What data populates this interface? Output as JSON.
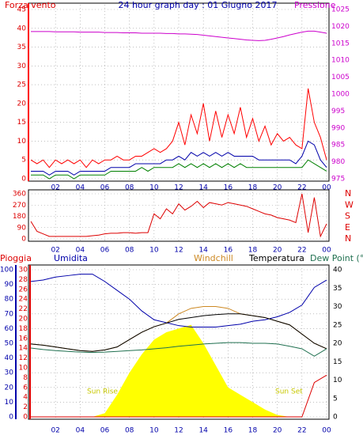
{
  "chart_data": [
    {
      "type": "line",
      "title": "24 hour graph day : 01 Giugno 2017",
      "ylabel": "Forza vento",
      "y2label": "Pressione",
      "x": [
        0,
        0.5,
        1,
        1.5,
        2,
        2.5,
        3,
        3.5,
        4,
        4.5,
        5,
        5.5,
        6,
        6.5,
        7,
        7.5,
        8,
        8.5,
        9,
        9.5,
        10,
        10.5,
        11,
        11.5,
        12,
        12.5,
        13,
        13.5,
        14,
        14.5,
        15,
        15.5,
        16,
        16.5,
        17,
        17.5,
        18,
        18.5,
        19,
        19.5,
        20,
        20.5,
        21,
        21.5,
        22,
        22.5,
        23,
        23.5,
        24
      ],
      "series": [
        {
          "color": "#ff0000",
          "values": [
            5,
            4,
            5,
            3,
            5,
            4,
            5,
            4,
            5,
            3,
            5,
            4,
            5,
            5,
            6,
            5,
            5,
            6,
            6,
            7,
            8,
            7,
            8,
            10,
            15,
            9,
            17,
            12,
            20,
            10,
            18,
            11,
            17,
            12,
            19,
            11,
            16,
            10,
            14,
            9,
            12,
            10,
            11,
            9,
            8,
            24,
            15,
            11,
            5
          ]
        },
        {
          "color": "#0000aa",
          "values": [
            2,
            2,
            2,
            1,
            2,
            2,
            2,
            1,
            2,
            2,
            2,
            2,
            2,
            3,
            3,
            3,
            3,
            4,
            4,
            4,
            4,
            4,
            5,
            5,
            6,
            5,
            7,
            6,
            7,
            6,
            7,
            6,
            7,
            6,
            6,
            6,
            6,
            5,
            5,
            5,
            5,
            5,
            5,
            4,
            6,
            10,
            9,
            5,
            3
          ]
        },
        {
          "color": "#008000",
          "values": [
            1,
            1,
            1,
            0,
            1,
            1,
            1,
            0,
            1,
            1,
            1,
            1,
            1,
            2,
            2,
            2,
            2,
            2,
            3,
            2,
            3,
            3,
            3,
            3,
            4,
            3,
            4,
            3,
            4,
            3,
            4,
            3,
            4,
            3,
            4,
            3,
            3,
            3,
            3,
            3,
            3,
            3,
            3,
            3,
            3,
            5,
            4,
            3,
            2
          ]
        },
        {
          "color": "#cc00cc",
          "axis": "y2",
          "values": [
            1018.5,
            1018.5,
            1018.5,
            1018.5,
            1018.4,
            1018.4,
            1018.4,
            1018.4,
            1018.3,
            1018.3,
            1018.3,
            1018.3,
            1018.2,
            1018.2,
            1018.2,
            1018.1,
            1018.1,
            1018.1,
            1018.0,
            1018.0,
            1018.0,
            1018.0,
            1017.9,
            1017.9,
            1017.8,
            1017.8,
            1017.7,
            1017.6,
            1017.4,
            1017.2,
            1017.0,
            1016.8,
            1016.6,
            1016.4,
            1016.2,
            1016.0,
            1015.9,
            1015.8,
            1015.9,
            1016.2,
            1016.6,
            1017.0,
            1017.5,
            1017.9,
            1018.3,
            1018.6,
            1018.6,
            1018.3,
            1018.0
          ]
        }
      ],
      "xlim": [
        0,
        24
      ],
      "xticks": [
        {
          "value": 2,
          "label": "02"
        },
        {
          "value": 4,
          "label": "04"
        },
        {
          "value": 6,
          "label": "06"
        },
        {
          "value": 8,
          "label": "08"
        },
        10,
        12,
        14,
        16,
        18,
        20,
        22,
        {
          "value": 24,
          "label": "00"
        }
      ],
      "ylim": [
        0,
        45
      ],
      "yticks": [
        0,
        5,
        10,
        15,
        20,
        25,
        30,
        35,
        40,
        45
      ],
      "y2lim": [
        975,
        1025
      ],
      "y2ticks": [
        975,
        980,
        985,
        990,
        995,
        1000,
        1005,
        1010,
        1015,
        1020,
        1025
      ],
      "grid": true
    },
    {
      "type": "line",
      "x": [
        0,
        0.5,
        1,
        1.5,
        2,
        2.5,
        3,
        3.5,
        4,
        4.5,
        5,
        5.5,
        6,
        6.5,
        7,
        7.5,
        8,
        8.5,
        9,
        9.5,
        10,
        10.5,
        11,
        11.5,
        12,
        12.5,
        13,
        13.5,
        14,
        14.5,
        15,
        15.5,
        16,
        16.5,
        17,
        17.5,
        18,
        18.5,
        19,
        19.5,
        20,
        20.5,
        21,
        21.5,
        22,
        22.5,
        23,
        23.5,
        24
      ],
      "series": [
        {
          "color": "#dd0000",
          "values": [
            140,
            60,
            40,
            20,
            20,
            20,
            20,
            20,
            20,
            20,
            25,
            30,
            40,
            45,
            45,
            50,
            50,
            45,
            50,
            50,
            200,
            160,
            240,
            200,
            280,
            230,
            260,
            300,
            250,
            290,
            280,
            270,
            290,
            280,
            270,
            260,
            240,
            220,
            200,
            190,
            170,
            160,
            150,
            130,
            360,
            50,
            330,
            20,
            120
          ]
        }
      ],
      "xlim": [
        0,
        24
      ],
      "xticks": [
        {
          "value": 2,
          "label": "02"
        },
        {
          "value": 4,
          "label": "04"
        },
        {
          "value": 6,
          "label": "06"
        },
        {
          "value": 8,
          "label": "08"
        },
        10,
        12,
        14,
        16,
        18,
        20,
        22,
        {
          "value": 24,
          "label": "00"
        }
      ],
      "ylim": [
        0,
        360
      ],
      "yticks": [
        0,
        90,
        180,
        270,
        360
      ],
      "y2lim": [
        0,
        360
      ],
      "y2ticks": [
        {
          "value": 360,
          "label": "N"
        },
        {
          "value": 270,
          "label": "W"
        },
        {
          "value": 180,
          "label": "S"
        },
        {
          "value": 90,
          "label": "E"
        },
        {
          "value": 0,
          "label": "N"
        }
      ],
      "grid": true
    },
    {
      "type": "line",
      "x": [
        0,
        1,
        2,
        3,
        4,
        5,
        6,
        7,
        8,
        9,
        10,
        11,
        12,
        13,
        14,
        15,
        16,
        17,
        18,
        19,
        20,
        21,
        22,
        23,
        24
      ],
      "series": [
        {
          "name": "Pioggia",
          "color": "#dd0000",
          "axis": "y3",
          "values": [
            0,
            0,
            0,
            0,
            0,
            0,
            0,
            0,
            0,
            0,
            0,
            0,
            0,
            0,
            0,
            0,
            0,
            0,
            0,
            0,
            0,
            0,
            0,
            7,
            8.5
          ]
        },
        {
          "name": "Umidita",
          "color": "#0000aa",
          "values": [
            92,
            93,
            95,
            96,
            97,
            97,
            92,
            86,
            80,
            72,
            66,
            64,
            62,
            61,
            61,
            61,
            62,
            63,
            65,
            66,
            68,
            71,
            76,
            88,
            93
          ]
        },
        {
          "name": "Windchill",
          "color": "#cc8822",
          "axis": "y2",
          "values": [
            19.8,
            19.5,
            19,
            18.5,
            18,
            17.8,
            18.2,
            19,
            21,
            23,
            24.5,
            25.5,
            28,
            29.5,
            30,
            30,
            29.5,
            28,
            27.5,
            27,
            26,
            25,
            22.5,
            20,
            18.5
          ]
        },
        {
          "name": "Temperatura",
          "color": "#000000",
          "axis": "y2",
          "values": [
            19.8,
            19.5,
            19,
            18.5,
            18,
            17.8,
            18.2,
            19,
            21,
            23,
            24.5,
            25.5,
            26.5,
            27,
            27.5,
            27.8,
            28,
            28,
            27.5,
            27,
            26,
            25,
            22.5,
            20,
            18.5
          ]
        },
        {
          "name": "Dew Point (°C",
          "color": "#207050",
          "axis": "y2",
          "values": [
            18.7,
            18.3,
            18,
            17.8,
            17.6,
            17.5,
            17.6,
            17.8,
            18,
            18.2,
            18.5,
            18.8,
            19.2,
            19.5,
            19.8,
            20,
            20.2,
            20.2,
            20,
            20,
            19.8,
            19.2,
            18.5,
            16.5,
            18.5
          ]
        },
        {
          "color": "#ffff00",
          "axis": "y2",
          "style": "area",
          "values": [
            0,
            0,
            0,
            0,
            0,
            0,
            1,
            6,
            12,
            17,
            21,
            23,
            24,
            25,
            20,
            14,
            8,
            6,
            4,
            2,
            0.5,
            0,
            0,
            0,
            0
          ]
        }
      ],
      "annotations": [
        "Sun Rise",
        "Sun Set"
      ],
      "xlim": [
        0,
        24
      ],
      "xticks": [
        {
          "value": 2,
          "label": "02"
        },
        {
          "value": 4,
          "label": "04"
        },
        {
          "value": 6,
          "label": "06"
        },
        {
          "value": 8,
          "label": "08"
        },
        10,
        12,
        14,
        16,
        18,
        20,
        22,
        {
          "value": 24,
          "label": "00"
        }
      ],
      "ylim": [
        0,
        100
      ],
      "yticks": [
        0,
        10,
        20,
        30,
        40,
        50,
        60,
        70,
        80,
        90,
        100
      ],
      "y3lim": [
        0,
        30
      ],
      "y3ticks": [
        0,
        2,
        4,
        6,
        8,
        10,
        12,
        14,
        16,
        18,
        20,
        22,
        24,
        26,
        28,
        30
      ],
      "y2lim": [
        0,
        40
      ],
      "y2ticks": [
        0,
        5,
        10,
        15,
        20,
        25,
        30,
        35,
        40
      ],
      "grid": true
    }
  ]
}
